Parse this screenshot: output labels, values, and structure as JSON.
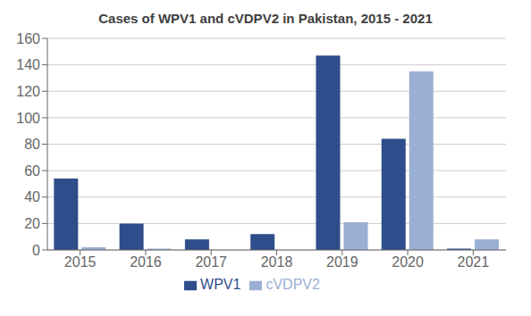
{
  "chart_data": {
    "type": "bar",
    "title": "Cases of WPV1 and cVDPV2 in Pakistan, 2015 - 2021",
    "categories": [
      "2015",
      "2016",
      "2017",
      "2018",
      "2019",
      "2020",
      "2021"
    ],
    "series": [
      {
        "name": "WPV1",
        "color": "#2E4D8A",
        "values": [
          54,
          20,
          8,
          12,
          147,
          84,
          1
        ]
      },
      {
        "name": "cVDPV2",
        "color": "#9AAFD4",
        "values": [
          2,
          1,
          0,
          0,
          21,
          135,
          8
        ]
      }
    ],
    "ylim": [
      0,
      160
    ],
    "yticks": [
      0,
      20,
      40,
      60,
      80,
      100,
      120,
      140,
      160
    ],
    "grid": true,
    "legend": "bottom"
  }
}
